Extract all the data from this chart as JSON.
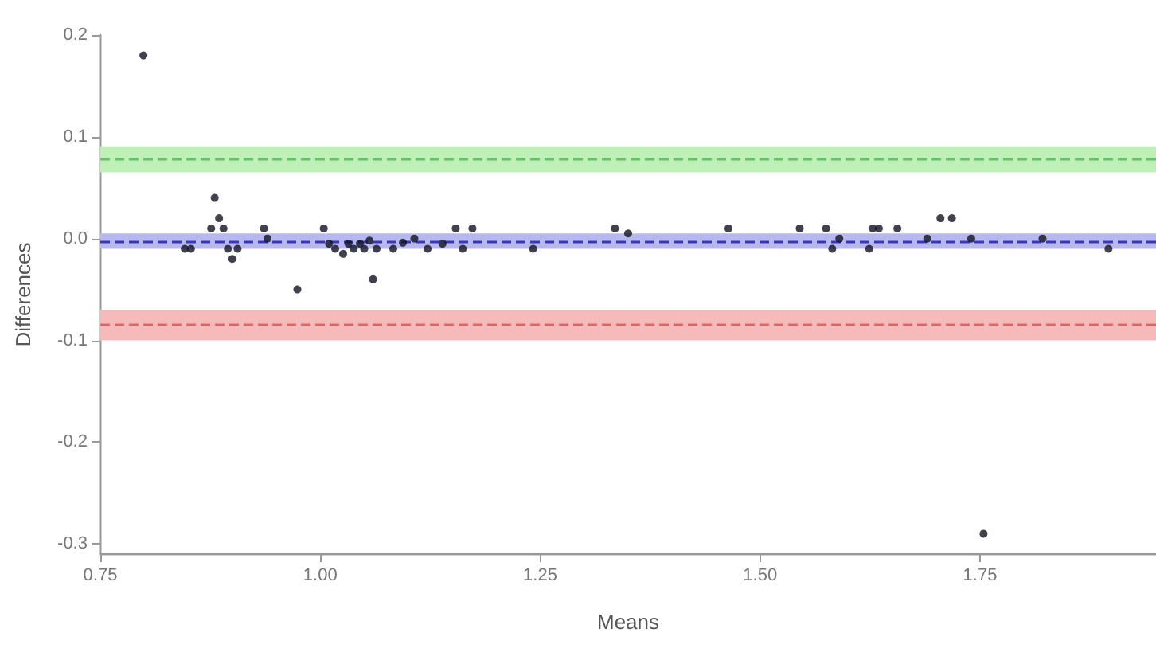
{
  "chart_data": {
    "type": "scatter",
    "xlabel": "Means",
    "ylabel": "Differences",
    "xlim": [
      0.75,
      1.95
    ],
    "xticks": [
      {
        "value": 0.75,
        "label": "0.75"
      },
      {
        "value": 1,
        "label": "1.00"
      },
      1.25,
      {
        "value": 1.5,
        "label": "1.50"
      },
      1.75
    ],
    "ylim": [
      -0.31,
      0.2
    ],
    "yticks": [
      {
        "value": -0.3,
        "label": "-0.3"
      },
      {
        "value": -0.2,
        "label": "-0.2"
      },
      {
        "value": -0.1,
        "label": "-0.1"
      },
      {
        "value": 0,
        "label": "0.0"
      },
      0.1,
      0.2
    ],
    "grid": false,
    "marker": "circle",
    "x": [
      0.799,
      1.754,
      0.974,
      1.06,
      0.846,
      0.853,
      0.876,
      0.88,
      0.885,
      0.89,
      0.895,
      0.9,
      0.906,
      0.936,
      0.94,
      1.004,
      1.01,
      1.017,
      1.026,
      1.032,
      1.038,
      1.045,
      1.05,
      1.056,
      1.064,
      1.083,
      1.094,
      1.107,
      1.122,
      1.139,
      1.154,
      1.162,
      1.173,
      1.242,
      1.335,
      1.35,
      1.464,
      1.545,
      1.575,
      1.582,
      1.59,
      1.624,
      1.628,
      1.635,
      1.656,
      1.69,
      1.705,
      1.718,
      1.74,
      1.821,
      1.896
    ],
    "series": [
      {
        "color": "#111122",
        "values": [
          0.18,
          -0.29,
          -0.05,
          -0.04,
          -0.01,
          -0.01,
          0.01,
          0.04,
          0.02,
          0.01,
          -0.01,
          -0.02,
          -0.01,
          0.01,
          0,
          0.01,
          -0.005,
          -0.01,
          -0.015,
          -0.005,
          -0.01,
          -0.005,
          -0.01,
          -0.002,
          -0.01,
          -0.01,
          -0.004,
          0,
          -0.01,
          -0.005,
          0.01,
          -0.01,
          0.01,
          -0.01,
          0.01,
          0.005,
          0.01,
          0.01,
          0.01,
          -0.01,
          0,
          -0.01,
          0.01,
          0.01,
          0.01,
          0,
          0.02,
          0.02,
          0,
          0,
          -0.01
        ]
      }
    ],
    "bands": [
      {
        "axis": "y",
        "from": 0.065,
        "to": 0.09,
        "color": "#bff0b8"
      },
      {
        "axis": "y",
        "from": -0.01,
        "to": 0.005,
        "color": "#b8b8f0"
      },
      {
        "axis": "y",
        "from": -0.1,
        "to": -0.07,
        "color": "#f6baba"
      }
    ],
    "ref_lines": [
      {
        "axis": "y",
        "value": 0.078,
        "color": "#66c266",
        "line_style": "dashed"
      },
      {
        "axis": "y",
        "value": -0.003,
        "color": "#3838c0",
        "line_style": "dashed"
      },
      {
        "axis": "y",
        "value": -0.085,
        "color": "#d86868",
        "line_style": "dashed"
      }
    ]
  }
}
